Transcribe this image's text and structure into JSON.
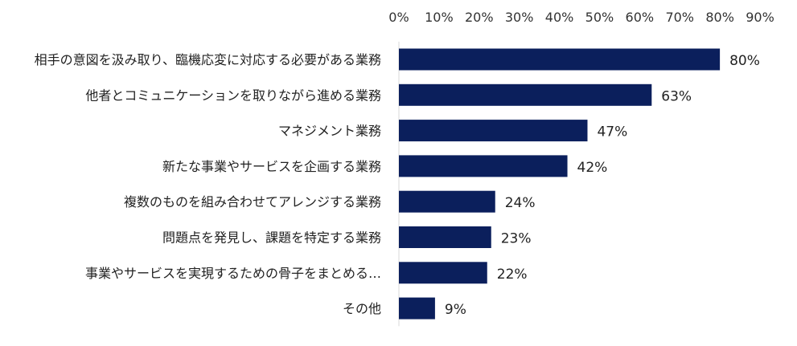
{
  "chart_data": {
    "type": "bar",
    "orientation": "horizontal",
    "categories": [
      "相手の意図を汲み取り、臨機応変に対応する必要がある業務",
      "他者とコミュニケーションを取りながら進める業務",
      "マネジメント業務",
      "新たな事業やサービスを企画する業務",
      "複数のものを組み合わせてアレンジする業務",
      "問題点を発見し、課題を特定する業務",
      "事業やサービスを実現するための骨子をまとめる…",
      "その他"
    ],
    "values": [
      80,
      63,
      47,
      42,
      24,
      23,
      22,
      9
    ],
    "data_labels": [
      "80%",
      "63%",
      "47%",
      "42%",
      "24%",
      "23%",
      "22%",
      "9%"
    ],
    "x_ticks": [
      "0%",
      "10%",
      "20%",
      "30%",
      "40%",
      "50%",
      "60%",
      "70%",
      "80%",
      "90%"
    ],
    "xlim": [
      0,
      90
    ],
    "x_axis_position": "top",
    "grid": false,
    "bar_color": "#0b1f5c"
  }
}
